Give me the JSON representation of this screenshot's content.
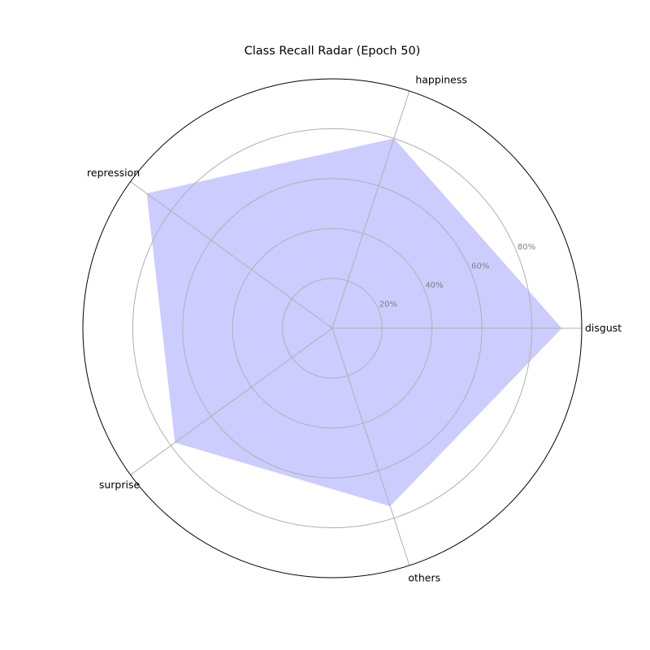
{
  "chart_data": {
    "type": "radar",
    "title": "Class Recall Radar (Epoch 50)",
    "categories": [
      "disgust",
      "happiness",
      "repression",
      "surprise",
      "others"
    ],
    "values": [
      92,
      80,
      92,
      78,
      75
    ],
    "rlim": [
      0,
      100
    ],
    "r_ticks": [
      20,
      40,
      60,
      80
    ],
    "r_tick_labels": [
      "20%",
      "40%",
      "60%",
      "80%"
    ],
    "grid": true,
    "fill_color": "#ccccff"
  }
}
